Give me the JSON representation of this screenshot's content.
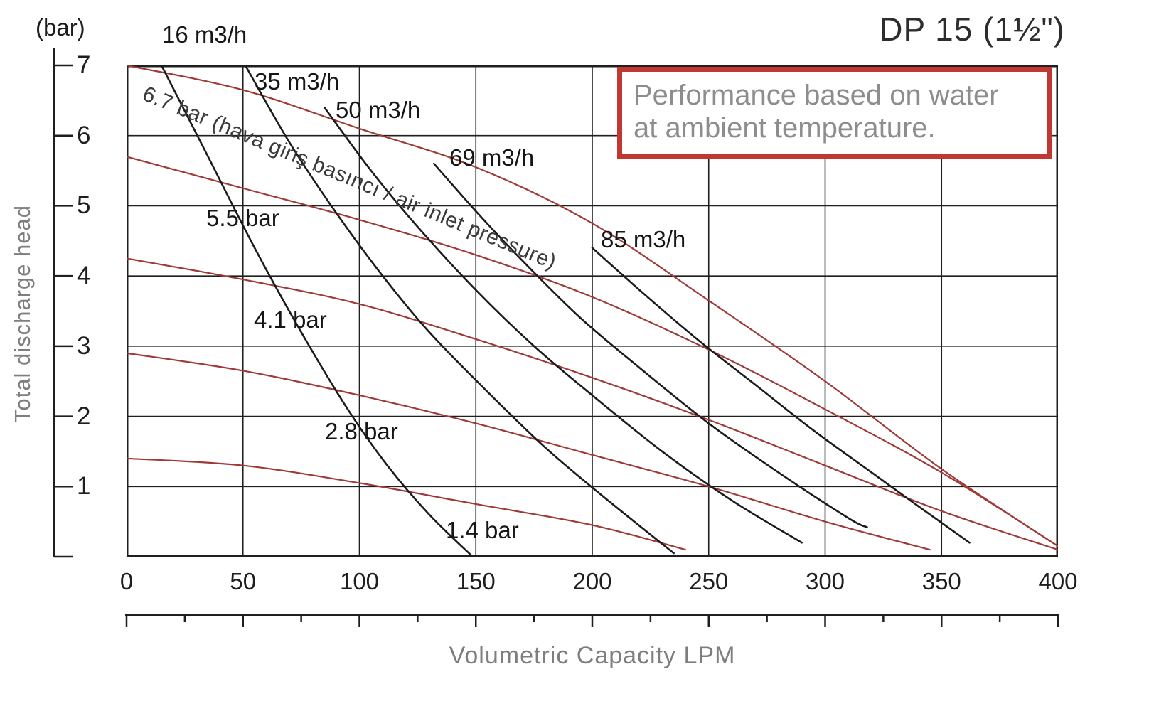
{
  "title": "DP 15 (1½\")",
  "y_axis_unit": "(bar)",
  "y_axis_label": "Total discharge head",
  "x_axis_label": "Volumetric Capacity LPM",
  "note": {
    "line1": "Performance based on water",
    "line2": "at ambient temperature."
  },
  "curve_labels": {
    "flow16": "16 m3/h",
    "flow35": "35 m3/h",
    "flow50": "50 m3/h",
    "flow69": "69 m3/h",
    "flow85": "85 m3/h",
    "pressure67": "6.7 bar (hava giriş basıncı / air inlet pressure)",
    "pressure55": "5.5 bar",
    "pressure41": "4.1 bar",
    "pressure28": "2.8 bar",
    "pressure14": "1.4 bar"
  },
  "colors": {
    "red_curve": "#9e3b38",
    "black_curve": "#1b1b1b",
    "grid": "#1f1f1f",
    "note_border": "#c13832",
    "note_text": "#8d8d8d",
    "axis_title_text": "#7e7e7e"
  },
  "chart_data": {
    "type": "line",
    "title": "DP 15 (1½\")",
    "xlabel": "Volumetric Capacity LPM",
    "ylabel": "Total discharge head",
    "y_unit": "bar",
    "xlim": [
      0,
      400
    ],
    "ylim": [
      0,
      7
    ],
    "x_ticks": [
      0,
      50,
      100,
      150,
      200,
      250,
      300,
      350,
      400
    ],
    "y_ticks": [
      1,
      2,
      3,
      4,
      5,
      6,
      7
    ],
    "grid": true,
    "legend_position": "inline-labels",
    "annotation": "Performance based on water at ambient temperature.",
    "series": [
      {
        "name": "6.7 bar (hava giriş basıncı / air inlet pressure)",
        "group": "air-inlet-pressure",
        "color_key": "red_curve",
        "points": [
          [
            0,
            7.0
          ],
          [
            50,
            6.65
          ],
          [
            100,
            6.1
          ],
          [
            150,
            5.55
          ],
          [
            200,
            4.75
          ],
          [
            250,
            3.65
          ],
          [
            300,
            2.5
          ],
          [
            350,
            1.25
          ],
          [
            400,
            0.15
          ]
        ]
      },
      {
        "name": "5.5 bar",
        "group": "air-inlet-pressure",
        "color_key": "red_curve",
        "points": [
          [
            0,
            5.7
          ],
          [
            50,
            5.25
          ],
          [
            100,
            4.8
          ],
          [
            150,
            4.3
          ],
          [
            200,
            3.7
          ],
          [
            250,
            2.95
          ],
          [
            300,
            2.1
          ],
          [
            350,
            1.2
          ],
          [
            400,
            0.15
          ]
        ]
      },
      {
        "name": "4.1 bar",
        "group": "air-inlet-pressure",
        "color_key": "red_curve",
        "points": [
          [
            0,
            4.25
          ],
          [
            50,
            3.95
          ],
          [
            100,
            3.6
          ],
          [
            150,
            3.1
          ],
          [
            200,
            2.55
          ],
          [
            250,
            1.95
          ],
          [
            300,
            1.3
          ],
          [
            350,
            0.65
          ],
          [
            400,
            0.1
          ]
        ]
      },
      {
        "name": "2.8 bar",
        "group": "air-inlet-pressure",
        "color_key": "red_curve",
        "points": [
          [
            0,
            2.9
          ],
          [
            50,
            2.65
          ],
          [
            100,
            2.3
          ],
          [
            150,
            1.9
          ],
          [
            200,
            1.45
          ],
          [
            250,
            1.0
          ],
          [
            300,
            0.5
          ],
          [
            345,
            0.1
          ]
        ]
      },
      {
        "name": "1.4 bar",
        "group": "air-inlet-pressure",
        "color_key": "red_curve",
        "points": [
          [
            0,
            1.4
          ],
          [
            50,
            1.3
          ],
          [
            100,
            1.05
          ],
          [
            150,
            0.75
          ],
          [
            200,
            0.45
          ],
          [
            240,
            0.1
          ]
        ]
      },
      {
        "name": "16 m3/h",
        "group": "air-consumption",
        "color_key": "black_curve",
        "points": [
          [
            15,
            7.0
          ],
          [
            35,
            5.7
          ],
          [
            55,
            4.4
          ],
          [
            75,
            3.2
          ],
          [
            95,
            2.1
          ],
          [
            112,
            1.3
          ],
          [
            130,
            0.6
          ],
          [
            148,
            0.02
          ]
        ]
      },
      {
        "name": "35 m3/h",
        "group": "air-consumption",
        "color_key": "black_curve",
        "points": [
          [
            51,
            7.0
          ],
          [
            70,
            5.9
          ],
          [
            90,
            4.9
          ],
          [
            110,
            4.0
          ],
          [
            130,
            3.2
          ],
          [
            155,
            2.35
          ],
          [
            180,
            1.55
          ],
          [
            205,
            0.85
          ],
          [
            235,
            0.05
          ]
        ]
      },
      {
        "name": "50 m3/h",
        "group": "air-consumption",
        "color_key": "black_curve",
        "points": [
          [
            85,
            6.4
          ],
          [
            105,
            5.5
          ],
          [
            125,
            4.7
          ],
          [
            150,
            3.8
          ],
          [
            175,
            3.0
          ],
          [
            200,
            2.3
          ],
          [
            230,
            1.5
          ],
          [
            260,
            0.8
          ],
          [
            290,
            0.2
          ]
        ]
      },
      {
        "name": "69 m3/h",
        "group": "air-consumption",
        "color_key": "black_curve",
        "points": [
          [
            132,
            5.6
          ],
          [
            152,
            4.85
          ],
          [
            172,
            4.15
          ],
          [
            195,
            3.4
          ],
          [
            220,
            2.7
          ],
          [
            250,
            1.9
          ],
          [
            280,
            1.2
          ],
          [
            310,
            0.55
          ],
          [
            318,
            0.42
          ]
        ]
      },
      {
        "name": "85 m3/h",
        "group": "air-consumption",
        "color_key": "black_curve",
        "points": [
          [
            200,
            4.4
          ],
          [
            222,
            3.75
          ],
          [
            245,
            3.1
          ],
          [
            270,
            2.45
          ],
          [
            295,
            1.8
          ],
          [
            320,
            1.2
          ],
          [
            340,
            0.72
          ],
          [
            362,
            0.2
          ]
        ]
      }
    ]
  }
}
